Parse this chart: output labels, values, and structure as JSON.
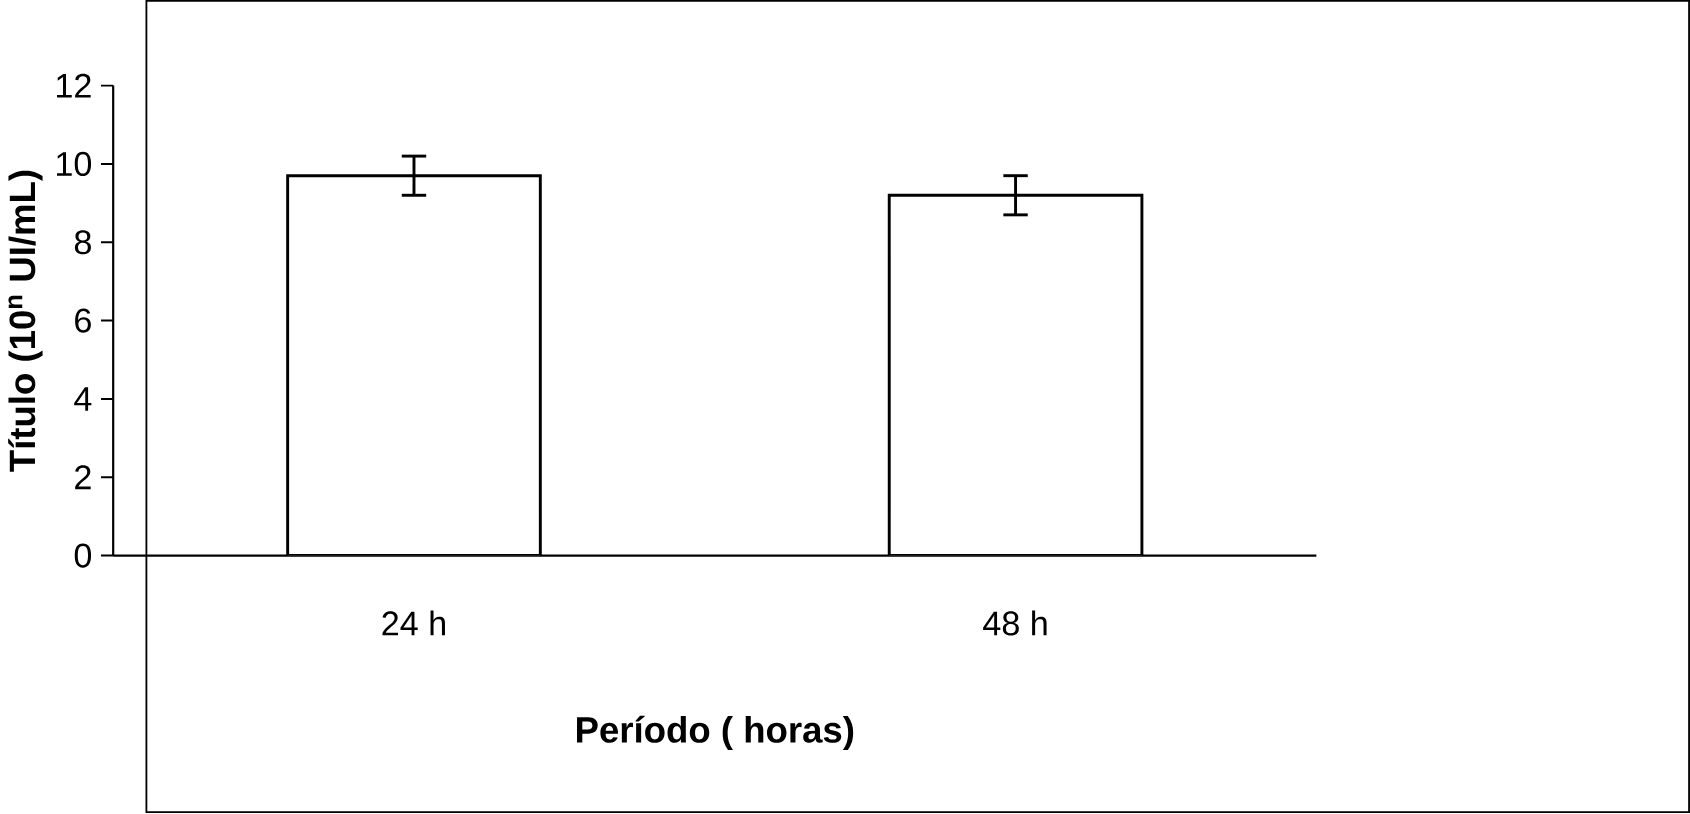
{
  "chart_data": {
    "type": "bar",
    "xlabel": "Período ( horas)",
    "ylabel": "Título (10$^{n}$ UI/mL)",
    "categories": [
      "24 h",
      "48 h"
    ],
    "values": [
      9.7,
      9.2
    ],
    "errors": [
      0.5,
      0.5
    ],
    "color": "#ffffff",
    "ylim": [
      0,
      12
    ],
    "yticks": [
      0,
      2,
      4,
      6,
      8,
      10,
      12
    ],
    "grid": false
  }
}
